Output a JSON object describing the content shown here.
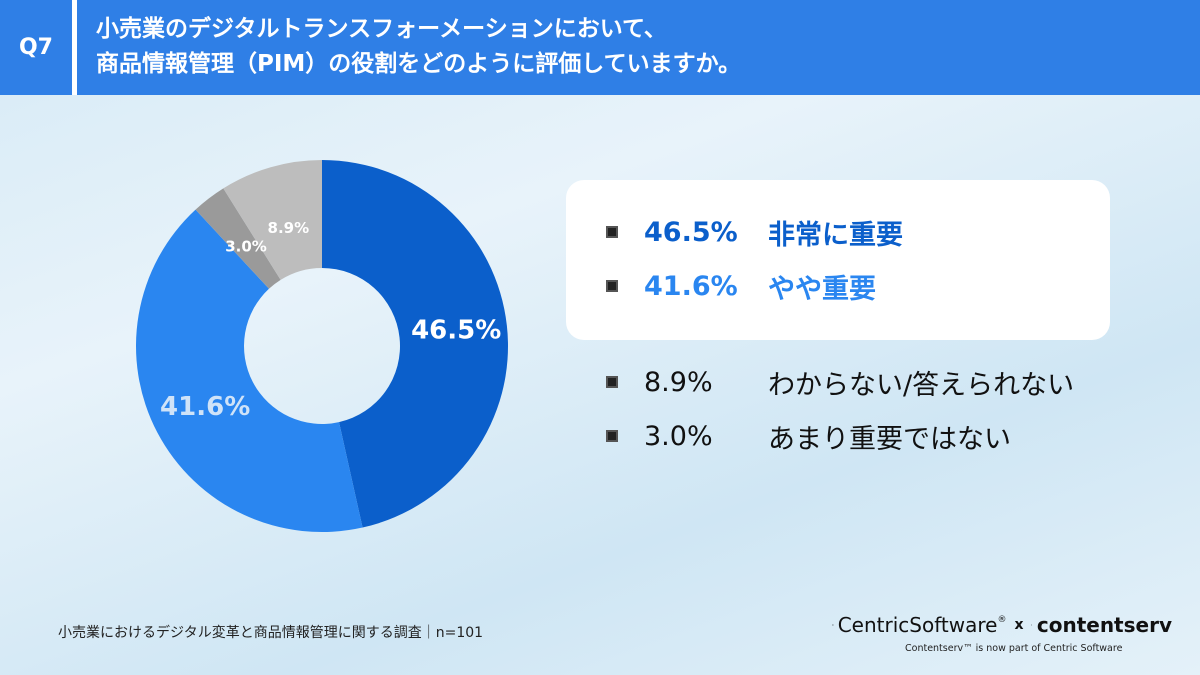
{
  "header": {
    "question_no": "Q7",
    "title_line1": "小売業のデジタルトランスフォーメーションにおいて、",
    "title_line2": "商品情報管理（PIM）の役割をどのように評価していますか。"
  },
  "chart_data": {
    "type": "pie",
    "donut": true,
    "slices": [
      {
        "label": "非常に重要",
        "value": 46.5,
        "value_label": "46.5%",
        "color": "#0b5fcb",
        "text_color": "#ffffff"
      },
      {
        "label": "やや重要",
        "value": 41.6,
        "value_label": "41.6%",
        "color": "#2a86f0",
        "text_color": "#cfe3f8"
      },
      {
        "label": "あまり重要ではない",
        "value": 3.0,
        "value_label": "3.0%",
        "color": "#9a9a9a",
        "text_color": "#ffffff"
      },
      {
        "label": "わからない/答えられない",
        "value": 8.9,
        "value_label": "8.9%",
        "color": "#bdbdbd",
        "text_color": "#ffffff"
      }
    ]
  },
  "legend": {
    "items": [
      {
        "pct": "46.5%",
        "label": "非常に重要"
      },
      {
        "pct": "41.6%",
        "label": "やや重要"
      },
      {
        "pct": "8.9%",
        "label": "わからない/答えられない"
      },
      {
        "pct": "3.0%",
        "label": "あまり重要ではない"
      }
    ]
  },
  "footer": {
    "survey": "小売業におけるデジタル変革と商品情報管理に関する調査｜n=101",
    "brand1": "CentricSoftware",
    "brand1_mark": "®",
    "times": "x",
    "brand2": "contentserv",
    "tagline": "Contentserv™ is now part of Centric Software"
  }
}
